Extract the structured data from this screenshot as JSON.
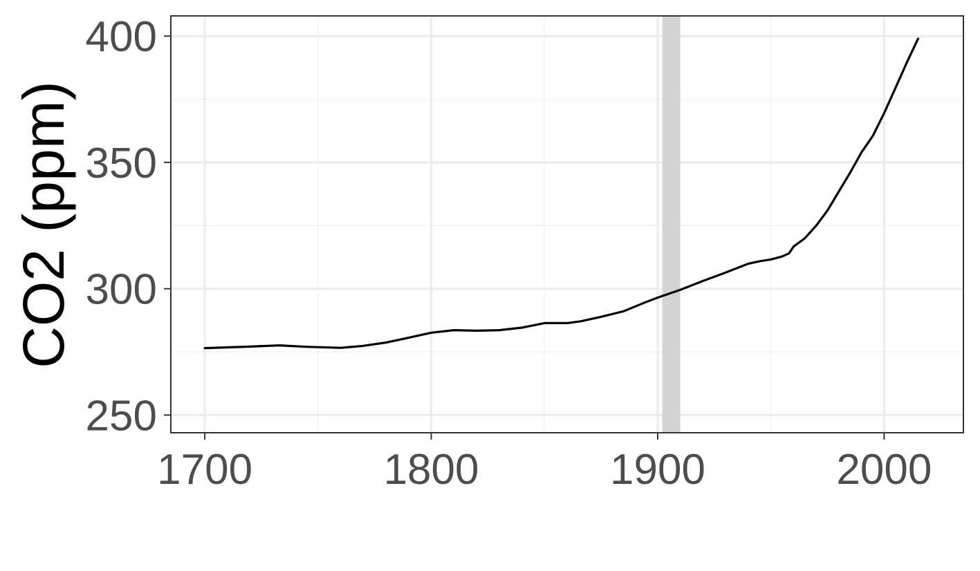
{
  "chart_data": {
    "type": "line",
    "title": "",
    "xlabel": "",
    "ylabel": "CO2 (ppm)",
    "xlim": [
      1685,
      2035
    ],
    "ylim": [
      243,
      408
    ],
    "x_ticks": [
      1700,
      1800,
      1900,
      2000
    ],
    "x_tick_labels": [
      "1700",
      "1800",
      "1900",
      "2000"
    ],
    "y_ticks": [
      250,
      300,
      350,
      400
    ],
    "y_tick_labels": [
      "250",
      "300",
      "350",
      "400"
    ],
    "grid": true,
    "legend": "none",
    "highlight_band": {
      "x": [
        1902,
        1910
      ],
      "color": "#d3d3d3"
    },
    "series": [
      {
        "color": "#000000",
        "x": [
          1700,
          1710,
          1720,
          1733,
          1745,
          1760,
          1770,
          1780,
          1790,
          1800,
          1810,
          1820,
          1830,
          1840,
          1850,
          1860,
          1866,
          1875,
          1885,
          1895,
          1900,
          1910,
          1920,
          1930,
          1940,
          1945,
          1950,
          1955,
          1958,
          1960,
          1965,
          1970,
          1975,
          1980,
          1985,
          1990,
          1995,
          2000,
          2005,
          2010,
          2015
        ],
        "y": [
          276.5,
          276.8,
          277.1,
          277.6,
          277.0,
          276.6,
          277.4,
          278.7,
          280.6,
          282.6,
          283.6,
          283.4,
          283.6,
          284.6,
          286.4,
          286.4,
          287.1,
          288.9,
          291.1,
          294.8,
          296.5,
          299.6,
          303.1,
          306.4,
          309.9,
          310.9,
          311.6,
          312.8,
          314.0,
          316.7,
          320.0,
          325.0,
          331.0,
          338.5,
          346.0,
          354.0,
          360.5,
          369.5,
          379.5,
          389.5,
          399.0
        ]
      }
    ]
  },
  "colors": {
    "background": "#ffffff",
    "grid_major": "#ebebeb",
    "grid_minor": "#f2f2f2",
    "panel_border": "#333333",
    "tick_label": "#4d4d4d",
    "axis_title": "#000000",
    "band": "#d3d3d3",
    "line": "#000000"
  }
}
